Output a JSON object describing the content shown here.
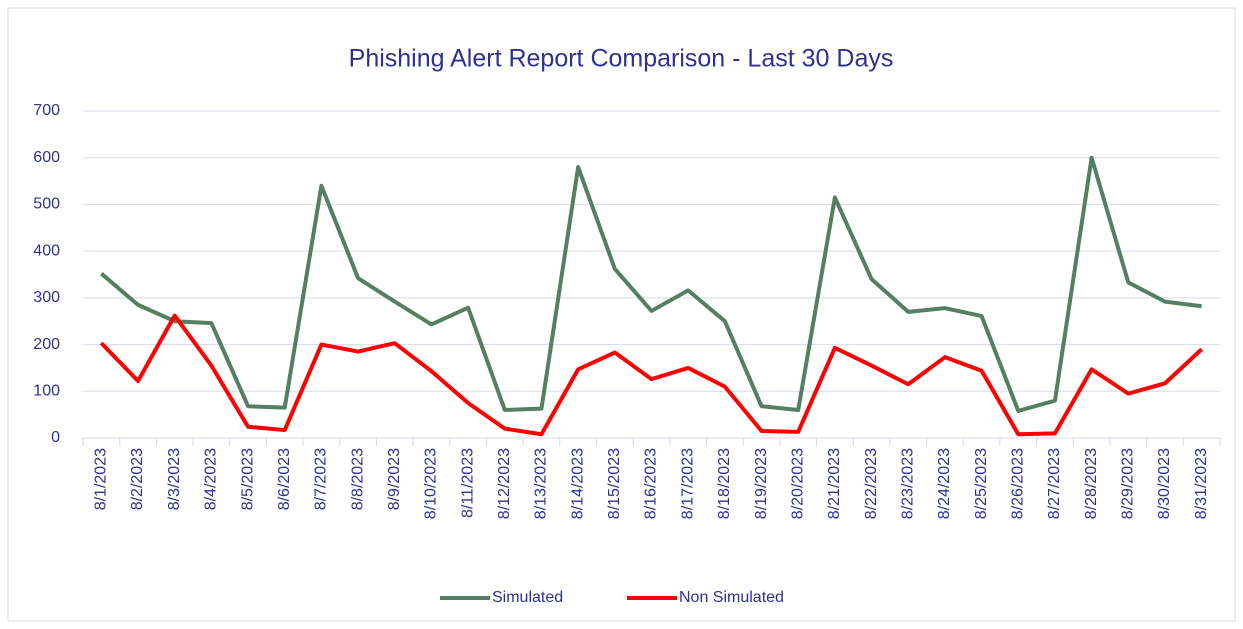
{
  "chart_data": {
    "type": "line",
    "title": "Phishing Alert Report Comparison - Last 30 Days",
    "categories": [
      "8/1/2023",
      "8/2/2023",
      "8/3/2023",
      "8/4/2023",
      "8/5/2023",
      "8/6/2023",
      "8/7/2023",
      "8/8/2023",
      "8/9/2023",
      "8/10/2023",
      "8/11/2023",
      "8/12/2023",
      "8/13/2023",
      "8/14/2023",
      "8/15/2023",
      "8/16/2023",
      "8/17/2023",
      "8/18/2023",
      "8/19/2023",
      "8/20/2023",
      "8/21/2023",
      "8/22/2023",
      "8/23/2023",
      "8/24/2023",
      "8/25/2023",
      "8/26/2023",
      "8/27/2023",
      "8/28/2023",
      "8/29/2023",
      "8/30/2023",
      "8/31/2023"
    ],
    "series": [
      {
        "name": "Simulated",
        "color": "#548061",
        "values": [
          352,
          285,
          250,
          246,
          68,
          65,
          540,
          342,
          292,
          243,
          279,
          60,
          63,
          580,
          362,
          272,
          316,
          250,
          68,
          60,
          515,
          340,
          270,
          278,
          261,
          58,
          80,
          600,
          333,
          292,
          282
        ]
      },
      {
        "name": "Non Simulated",
        "color": "#ff0000",
        "values": [
          203,
          122,
          262,
          155,
          24,
          17,
          200,
          185,
          203,
          143,
          75,
          20,
          8,
          147,
          183,
          126,
          150,
          110,
          15,
          13,
          193,
          155,
          115,
          173,
          144,
          8,
          10,
          147,
          95,
          117,
          190
        ]
      }
    ],
    "ylim": [
      0,
      700
    ],
    "yticks": [
      0,
      100,
      200,
      300,
      400,
      500,
      600,
      700
    ],
    "grid": true,
    "legend": "bottom"
  }
}
